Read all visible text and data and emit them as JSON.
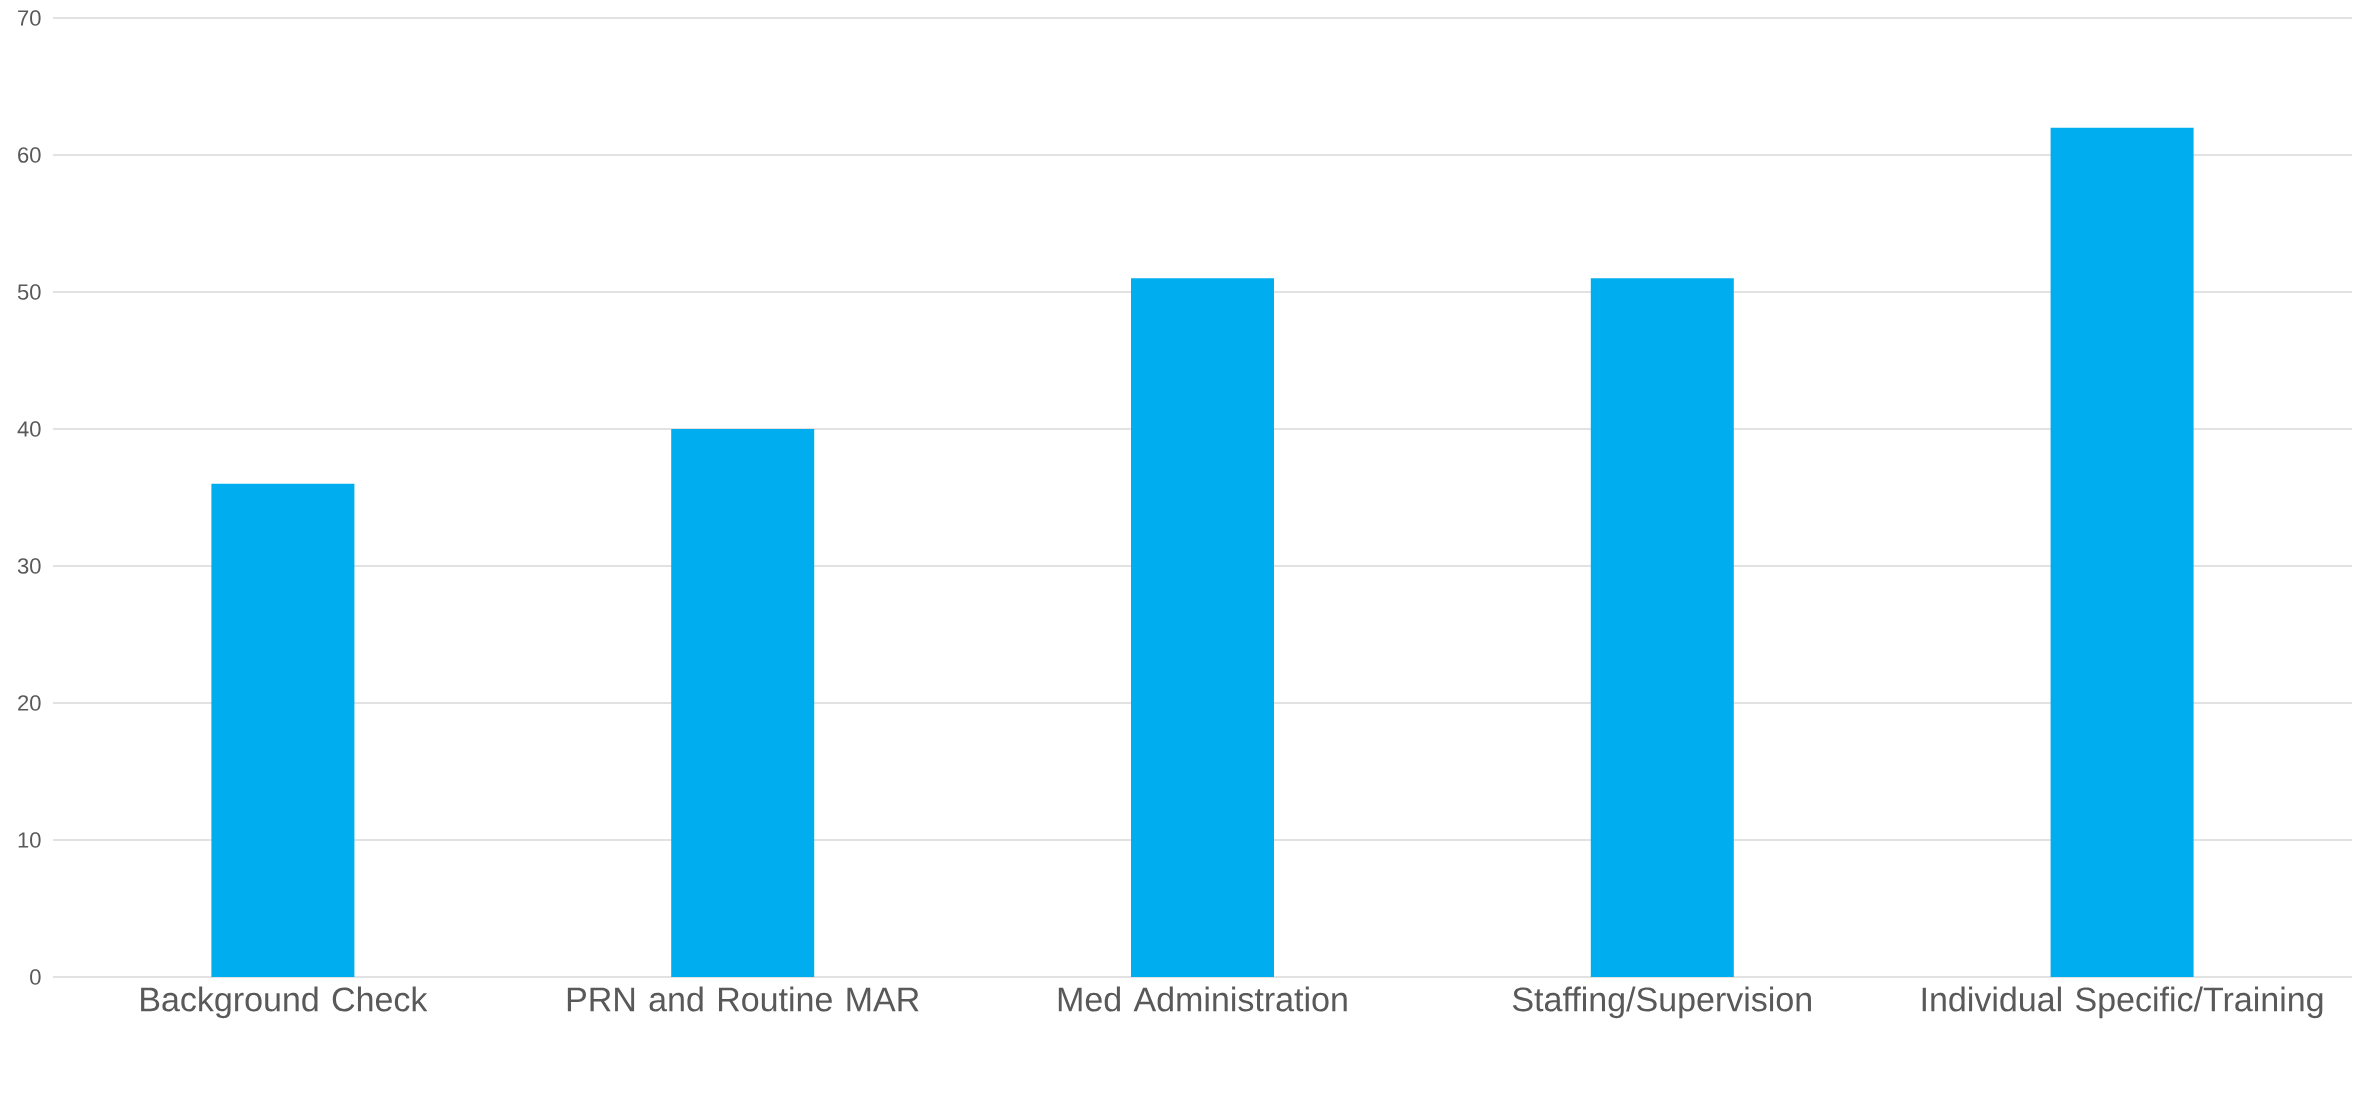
{
  "chart_data": {
    "type": "bar",
    "categories": [
      "Background Check",
      "PRN and Routine MAR",
      "Med Administration",
      "Staffing/Supervision",
      "Individual Specific/Training"
    ],
    "values": [
      36,
      40,
      51,
      51,
      62
    ],
    "color": "#00adef",
    "ylim": [
      0,
      70
    ],
    "yticks": [
      0,
      10,
      20,
      30,
      40,
      50,
      60,
      70
    ],
    "grid": "y"
  }
}
